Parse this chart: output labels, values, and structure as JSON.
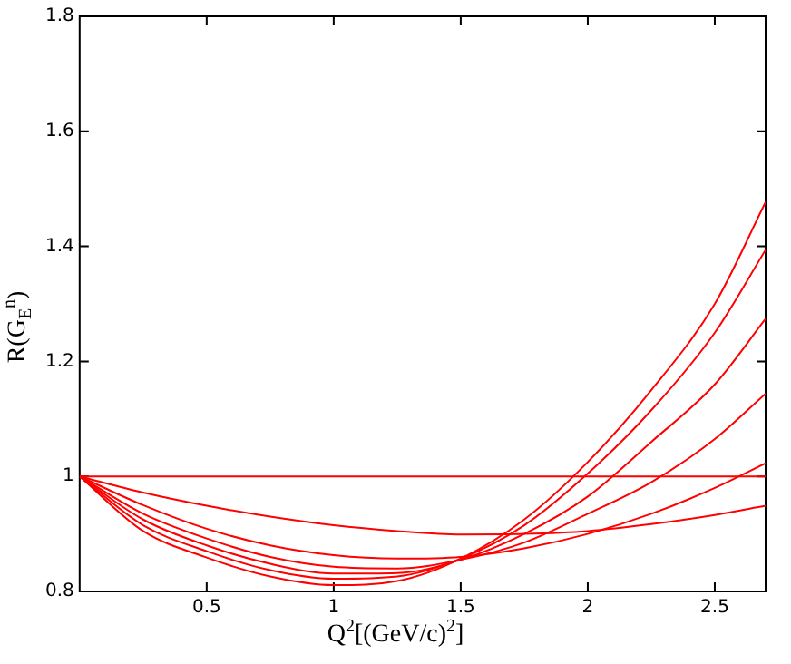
{
  "chart_data": {
    "type": "line",
    "xlabel": "Q$^{2}$[(GeV/c)$^{2}$]",
    "ylabel": "R(G$_{E}$$^{n}$)",
    "xlim": [
      0,
      2.7
    ],
    "xticks": [
      0.5,
      1,
      1.5,
      2,
      2.5
    ],
    "ylim": [
      0.8,
      1.8
    ],
    "yticks": [
      0.8,
      1,
      1.2,
      1.4,
      1.6,
      1.8
    ],
    "grid": false,
    "legend": false,
    "marker": "none",
    "line_style": "solid",
    "series": [
      {
        "color": "#ff0000",
        "x": [
          0,
          2.7
        ],
        "values": [
          1,
          1
        ]
      },
      {
        "color": "#ff0000",
        "x": [
          0,
          0.25,
          0.5,
          0.75,
          1,
          1.25,
          1.5,
          1.75,
          2,
          2.25,
          2.5,
          2.7
        ],
        "values": [
          1,
          0.972,
          0.949,
          0.93,
          0.915,
          0.905,
          0.899,
          0.9,
          0.905,
          0.917,
          0.933,
          0.949
        ]
      },
      {
        "color": "#ff0000",
        "x": [
          0,
          0.25,
          0.5,
          0.75,
          1,
          1.25,
          1.5,
          1.75,
          2,
          2.25,
          2.5,
          2.7
        ],
        "values": [
          1,
          0.95,
          0.909,
          0.88,
          0.863,
          0.857,
          0.86,
          0.875,
          0.9,
          0.935,
          0.98,
          1.023
        ]
      },
      {
        "color": "#ff0000",
        "x": [
          0,
          0.25,
          0.5,
          0.75,
          1,
          1.25,
          1.5,
          1.75,
          2,
          2.25,
          2.5,
          2.7
        ],
        "values": [
          1,
          0.935,
          0.892,
          0.86,
          0.843,
          0.84,
          0.855,
          0.885,
          0.935,
          0.99,
          1.065,
          1.144
        ]
      },
      {
        "color": "#ff0000",
        "x": [
          0,
          0.25,
          0.5,
          0.75,
          1,
          1.25,
          1.5,
          1.75,
          2,
          2.25,
          2.5,
          2.7
        ],
        "values": [
          1,
          0.925,
          0.88,
          0.848,
          0.831,
          0.832,
          0.855,
          0.9,
          0.965,
          1.06,
          1.16,
          1.274
        ]
      },
      {
        "color": "#ff0000",
        "x": [
          0,
          0.25,
          0.5,
          0.75,
          1,
          1.25,
          1.5,
          1.75,
          2,
          2.25,
          2.5,
          2.7
        ],
        "values": [
          1,
          0.915,
          0.87,
          0.837,
          0.822,
          0.826,
          0.857,
          0.915,
          1.005,
          1.115,
          1.25,
          1.394
        ]
      },
      {
        "color": "#ff0000",
        "x": [
          0,
          0.25,
          0.5,
          0.75,
          1,
          1.25,
          1.5,
          1.75,
          2,
          2.25,
          2.5,
          2.7
        ],
        "values": [
          1,
          0.905,
          0.859,
          0.826,
          0.811,
          0.818,
          0.857,
          0.925,
          1.025,
          1.15,
          1.3,
          1.477
        ]
      }
    ]
  }
}
